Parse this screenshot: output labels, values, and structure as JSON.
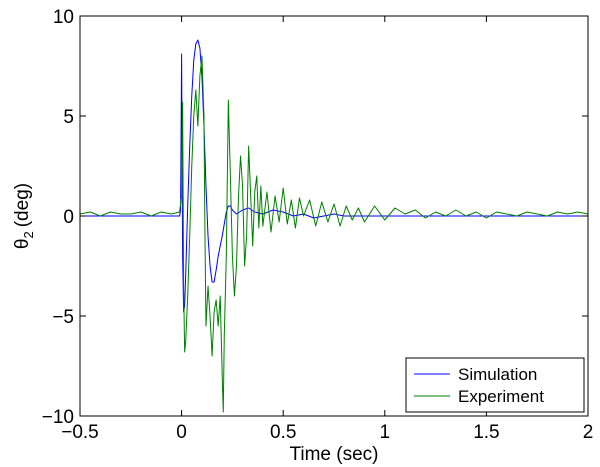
{
  "chart_data": {
    "type": "line",
    "xlabel": "Time (sec)",
    "ylabel_main": "θ",
    "ylabel_sub": "2",
    "ylabel_unit": "(deg)",
    "xlim": [
      -0.5,
      2
    ],
    "ylim": [
      -10,
      10
    ],
    "xticks": [
      -0.5,
      0,
      0.5,
      1,
      1.5,
      2
    ],
    "xtick_labels": [
      "−0.5",
      "0",
      "0.5",
      "1",
      "1.5",
      "2"
    ],
    "yticks": [
      -10,
      -5,
      0,
      5,
      10
    ],
    "ytick_labels": [
      "−10",
      "−5",
      "0",
      "5",
      "10"
    ],
    "grid": false,
    "legend_position": "bottom-right",
    "series": [
      {
        "name": "Simulation",
        "color": "#0000ff",
        "x": [
          -0.5,
          -0.01,
          -0.005,
          0.0,
          0.002,
          0.005,
          0.01,
          0.015,
          0.02,
          0.03,
          0.04,
          0.05,
          0.06,
          0.07,
          0.08,
          0.09,
          0.1,
          0.11,
          0.12,
          0.13,
          0.14,
          0.15,
          0.16,
          0.17,
          0.18,
          0.19,
          0.2,
          0.21,
          0.22,
          0.23,
          0.24,
          0.25,
          0.27,
          0.3,
          0.33,
          0.36,
          0.4,
          0.45,
          0.5,
          0.55,
          0.6,
          0.65,
          0.7,
          0.75,
          0.8,
          0.9,
          1.0,
          1.2,
          1.5,
          2.0
        ],
        "y": [
          0.0,
          0.0,
          0.3,
          8.1,
          4.0,
          -2.0,
          -4.8,
          -4.5,
          -3.0,
          0.5,
          3.5,
          6.0,
          7.8,
          8.6,
          8.8,
          8.4,
          7.0,
          4.5,
          1.5,
          -1.0,
          -2.5,
          -3.3,
          -3.3,
          -2.7,
          -2.0,
          -1.5,
          -1.0,
          -0.4,
          0.2,
          0.5,
          0.5,
          0.3,
          0.1,
          0.3,
          0.4,
          0.2,
          0.1,
          0.3,
          0.2,
          0.0,
          0.1,
          -0.1,
          0.0,
          0.1,
          0.0,
          0.0,
          0.0,
          0.0,
          0.0,
          0.0
        ]
      },
      {
        "name": "Experiment",
        "color": "#007f00",
        "x": [
          -0.5,
          -0.45,
          -0.4,
          -0.35,
          -0.3,
          -0.25,
          -0.2,
          -0.15,
          -0.1,
          -0.05,
          -0.01,
          0.0,
          0.005,
          0.01,
          0.015,
          0.02,
          0.03,
          0.04,
          0.05,
          0.06,
          0.07,
          0.08,
          0.09,
          0.1,
          0.11,
          0.115,
          0.12,
          0.13,
          0.14,
          0.15,
          0.16,
          0.17,
          0.18,
          0.19,
          0.2,
          0.205,
          0.21,
          0.22,
          0.23,
          0.24,
          0.25,
          0.26,
          0.27,
          0.28,
          0.29,
          0.3,
          0.31,
          0.32,
          0.33,
          0.34,
          0.35,
          0.36,
          0.37,
          0.38,
          0.39,
          0.4,
          0.42,
          0.44,
          0.46,
          0.48,
          0.5,
          0.52,
          0.54,
          0.56,
          0.58,
          0.6,
          0.63,
          0.66,
          0.69,
          0.72,
          0.75,
          0.78,
          0.81,
          0.84,
          0.87,
          0.9,
          0.95,
          1.0,
          1.05,
          1.1,
          1.15,
          1.2,
          1.25,
          1.3,
          1.35,
          1.4,
          1.45,
          1.5,
          1.55,
          1.6,
          1.65,
          1.7,
          1.75,
          1.8,
          1.85,
          1.9,
          1.95,
          2.0
        ],
        "y": [
          0.1,
          0.2,
          0.0,
          0.2,
          0.1,
          0.1,
          0.2,
          0.0,
          0.2,
          0.1,
          0.2,
          1.0,
          5.7,
          -3.5,
          -6.8,
          -6.3,
          -4.0,
          -1.0,
          2.5,
          5.0,
          6.3,
          4.5,
          7.0,
          8.0,
          5.0,
          -1.0,
          -5.5,
          -3.5,
          -5.0,
          -7.0,
          -4.8,
          -4.2,
          -5.5,
          -4.0,
          -8.0,
          -9.8,
          -6.0,
          -2.0,
          5.8,
          2.0,
          -2.0,
          -4.0,
          -2.5,
          1.0,
          3.0,
          1.5,
          -2.5,
          -1.0,
          3.5,
          1.0,
          -1.5,
          1.2,
          2.0,
          -0.6,
          1.5,
          -0.5,
          1.2,
          -0.8,
          1.0,
          -0.3,
          1.4,
          -0.4,
          0.8,
          -0.6,
          0.9,
          0.0,
          0.8,
          -0.5,
          0.7,
          -0.3,
          0.6,
          -0.5,
          0.5,
          -0.2,
          0.4,
          -0.3,
          0.5,
          -0.2,
          0.4,
          0.1,
          0.3,
          -0.1,
          0.2,
          0.0,
          0.3,
          0.0,
          0.2,
          -0.1,
          0.2,
          0.1,
          0.0,
          0.2,
          0.1,
          0.0,
          0.2,
          0.1,
          0.2,
          0.1
        ]
      }
    ]
  }
}
